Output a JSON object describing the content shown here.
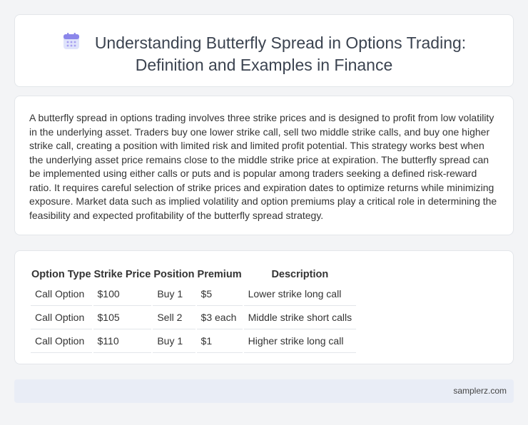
{
  "header": {
    "icon": "calendar-icon",
    "title_line1": "Understanding Butterfly Spread in Options Trading:",
    "title_line2": "Definition and Examples in Finance"
  },
  "body": {
    "paragraph": "A butterfly spread in options trading involves three strike prices and is designed to profit from low volatility in the underlying asset. Traders buy one lower strike call, sell two middle strike calls, and buy one higher strike call, creating a position with limited risk and limited profit potential. This strategy works best when the underlying asset price remains close to the middle strike price at expiration. The butterfly spread can be implemented using either calls or puts and is popular among traders seeking a defined risk-reward ratio. It requires careful selection of strike prices and expiration dates to optimize returns while minimizing exposure. Market data such as implied volatility and option premiums play a critical role in determining the feasibility and expected profitability of the butterfly spread strategy."
  },
  "table": {
    "headers": [
      "Option Type",
      "Strike Price",
      "Position",
      "Premium",
      "Description"
    ],
    "rows": [
      [
        "Call Option",
        "$100",
        "Buy 1",
        "$5",
        "Lower strike long call"
      ],
      [
        "Call Option",
        "$105",
        "Sell 2",
        "$3 each",
        "Middle strike short calls"
      ],
      [
        "Call Option",
        "$110",
        "Buy 1",
        "$1",
        "Higher strike long call"
      ]
    ]
  },
  "footer": {
    "site": "samplerz.com"
  }
}
